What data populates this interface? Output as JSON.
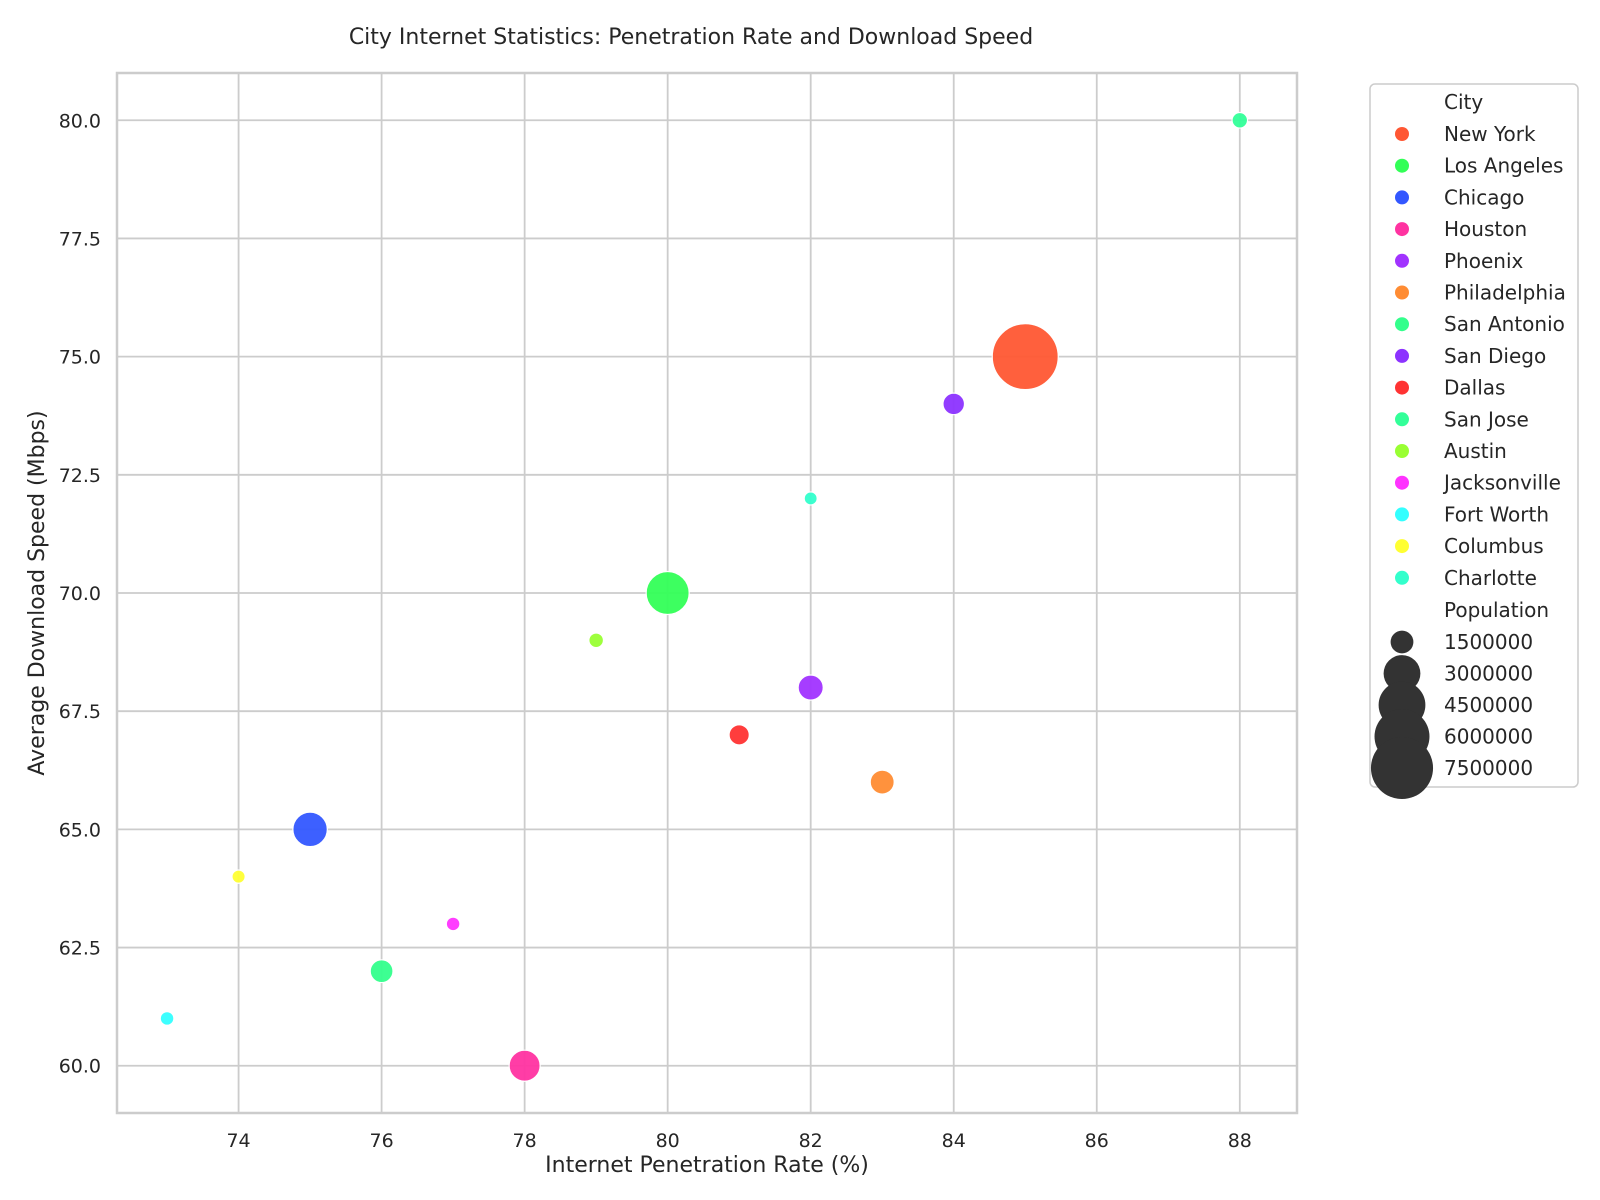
{
  "chart_data": {
    "type": "scatter",
    "title": "City Internet Statistics: Penetration Rate and Download Speed",
    "xlabel": "Internet Penetration Rate (%)",
    "ylabel": "Average Download Speed (Mbps)",
    "xlim": [
      72.3,
      88.8
    ],
    "ylim": [
      59.0,
      81.0
    ],
    "x_ticks": [
      "74",
      "76",
      "78",
      "80",
      "82",
      "84",
      "86",
      "88"
    ],
    "y_ticks": [
      "60.0",
      "62.5",
      "65.0",
      "67.5",
      "70.0",
      "72.5",
      "75.0",
      "77.5",
      "80.0"
    ],
    "grid": true,
    "legend_position": "outside-right",
    "series": [
      {
        "name": "New York",
        "x": 85,
        "y": 75,
        "population": 8400000,
        "color": "#ff5733"
      },
      {
        "name": "Los Angeles",
        "x": 80,
        "y": 70,
        "population": 3900000,
        "color": "#33ff57"
      },
      {
        "name": "Chicago",
        "x": 75,
        "y": 65,
        "population": 2700000,
        "color": "#3357ff"
      },
      {
        "name": "Houston",
        "x": 78,
        "y": 60,
        "population": 2300000,
        "color": "#ff33a1"
      },
      {
        "name": "Phoenix",
        "x": 82,
        "y": 68,
        "population": 1700000,
        "color": "#a133ff"
      },
      {
        "name": "Philadelphia",
        "x": 83,
        "y": 66,
        "population": 1600000,
        "color": "#ff8c33"
      },
      {
        "name": "San Antonio",
        "x": 76,
        "y": 62,
        "population": 1500000,
        "color": "#33ff8c"
      },
      {
        "name": "San Diego",
        "x": 84,
        "y": 74,
        "population": 1400000,
        "color": "#8c33ff"
      },
      {
        "name": "Dallas",
        "x": 81,
        "y": 67,
        "population": 1300000,
        "color": "#ff3333"
      },
      {
        "name": "San Jose",
        "x": 88,
        "y": 80,
        "population": 1000000,
        "color": "#33ff99"
      },
      {
        "name": "Austin",
        "x": 79,
        "y": 69,
        "population": 950000,
        "color": "#99ff33"
      },
      {
        "name": "Jacksonville",
        "x": 77,
        "y": 63,
        "population": 900000,
        "color": "#ff33ff"
      },
      {
        "name": "Fort Worth",
        "x": 73,
        "y": 61,
        "population": 900000,
        "color": "#33ffff"
      },
      {
        "name": "Columbus",
        "x": 74,
        "y": 64,
        "population": 880000,
        "color": "#ffff33"
      },
      {
        "name": "Charlotte",
        "x": 82,
        "y": 72,
        "population": 870000,
        "color": "#33ffcc"
      }
    ],
    "legend": {
      "hue_title": "City",
      "size_title": "Population",
      "size_entries": [
        {
          "label": "1500000",
          "value": 1500000
        },
        {
          "label": "3000000",
          "value": 3000000
        },
        {
          "label": "4500000",
          "value": 4500000
        },
        {
          "label": "6000000",
          "value": 6000000
        },
        {
          "label": "7500000",
          "value": 7500000
        }
      ],
      "size_marker_color": "#333333"
    }
  }
}
